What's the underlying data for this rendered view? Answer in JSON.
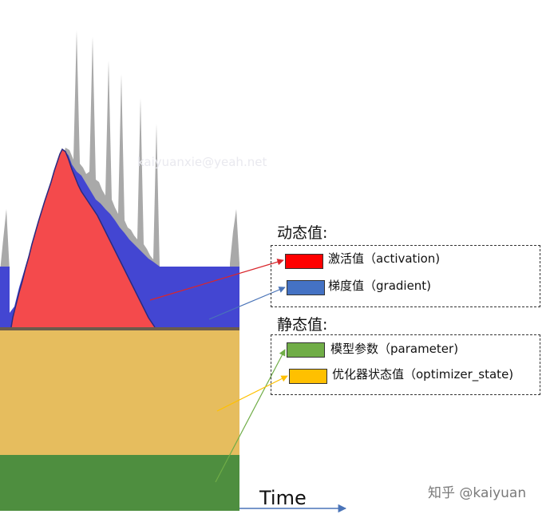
{
  "chart_data": {
    "type": "area",
    "x_axis_label": "Time",
    "static_layers": [
      {
        "name": "模型参数（parameter)",
        "color": "#4e8e3f"
      },
      {
        "name": "优化器状态值（optimizer_state)",
        "color": "#e6bd5e"
      }
    ],
    "dynamic_layers": [
      {
        "name": "激活值（activation)",
        "color": "#f44a4c"
      },
      {
        "name": "梯度值（gradient)",
        "color": "#4346d2"
      }
    ],
    "spike_color": "#a9a9a9",
    "legend": {
      "dynamic_title": "动态值:",
      "static_title": "静态值:",
      "items": [
        {
          "label": "激活值（activation)",
          "color": "#ff0000"
        },
        {
          "label": "梯度值（gradient)",
          "color": "#4472c4"
        },
        {
          "label": "模型参数（parameter)",
          "color": "#70ad47"
        },
        {
          "label": "优化器状态值（optimizer_state)",
          "color": "#ffc000"
        }
      ]
    },
    "arrow_colors": [
      "#d9262c",
      "#4a74b8",
      "#70ad47",
      "#ffc000"
    ]
  },
  "watermark": "kaiyuanxie@yeah.net",
  "credit": "知乎 @kaiyuan"
}
